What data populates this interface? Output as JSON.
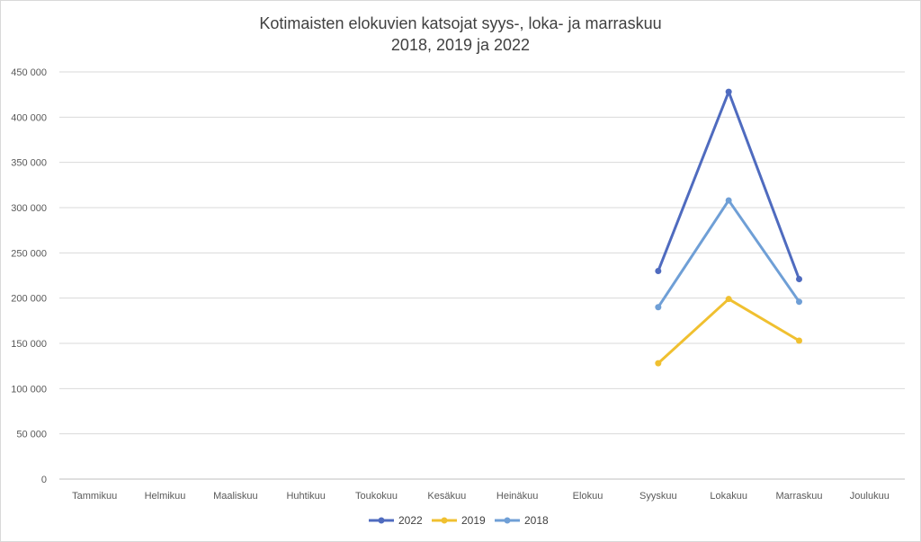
{
  "chart_data": {
    "type": "line",
    "title_line1": "Kotimaisten elokuvien katsojat syys-, loka- ja  marraskuu",
    "title_line2": "2018, 2019 ja 2022",
    "categories": [
      "Tammikuu",
      "Helmikuu",
      "Maaliskuu",
      "Huhtikuu",
      "Toukokuu",
      "Kesäkuu",
      "Heinäkuu",
      "Elokuu",
      "Syyskuu",
      "Lokakuu",
      "Marraskuu",
      "Joulukuu"
    ],
    "ylim": [
      0,
      450000
    ],
    "yticks": [
      0,
      50000,
      100000,
      150000,
      200000,
      250000,
      300000,
      350000,
      400000,
      450000
    ],
    "ytick_labels": [
      "0",
      "50 000",
      "100 000",
      "150 000",
      "200 000",
      "250 000",
      "300 000",
      "350 000",
      "400 000",
      "450 000"
    ],
    "grid": true,
    "legend_position": "bottom",
    "series": [
      {
        "name": "2022",
        "color": "#4f6bbf",
        "values": [
          null,
          null,
          null,
          null,
          null,
          null,
          null,
          null,
          230000,
          428000,
          221000,
          null
        ]
      },
      {
        "name": "2019",
        "color": "#f0c030",
        "values": [
          null,
          null,
          null,
          null,
          null,
          null,
          null,
          null,
          128000,
          199000,
          153000,
          null
        ]
      },
      {
        "name": "2018",
        "color": "#6f9fd6",
        "values": [
          null,
          null,
          null,
          null,
          null,
          null,
          null,
          null,
          190000,
          308000,
          196000,
          null
        ]
      }
    ]
  }
}
